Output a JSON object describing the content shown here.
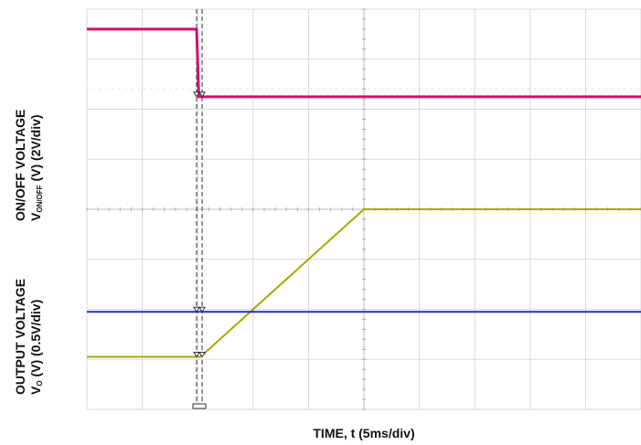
{
  "chart_data": {
    "type": "line",
    "title": "",
    "xlabel": "TIME, t (5ms/div)",
    "y_labels": {
      "upper_line1": "ON/OFF VOLTAGE",
      "upper_line2_main": "V",
      "upper_line2_sub": "ON/OFF",
      "upper_line2_rest": " (V) (2V/div)",
      "lower_line1": "OUTPUT VOLTAGE",
      "lower_line2_main": "V",
      "lower_line2_sub": "O",
      "lower_line2_rest": " (V) (0.5V/div)"
    },
    "x_divisions": 10,
    "y_divisions": 8,
    "xlim_divisions": [
      0,
      10
    ],
    "ylim_divisions": [
      0,
      8
    ],
    "grid": true,
    "series": [
      {
        "key": "von_off",
        "color": "#d0106a",
        "x_div": [
          0,
          1.98,
          2.02,
          10
        ],
        "y_div": [
          7.6,
          7.6,
          6.25,
          6.25
        ]
      },
      {
        "key": "vo",
        "color": "#a8a800",
        "x_div": [
          0,
          2.05,
          5.0,
          10
        ],
        "y_div": [
          1.05,
          1.05,
          4.0,
          4.0
        ]
      },
      {
        "key": "reference",
        "color": "#1f2fd0",
        "x_div": [
          0,
          10
        ],
        "y_div": [
          1.95,
          1.95
        ]
      }
    ],
    "cursors_x_div": [
      1.98,
      2.08
    ]
  }
}
